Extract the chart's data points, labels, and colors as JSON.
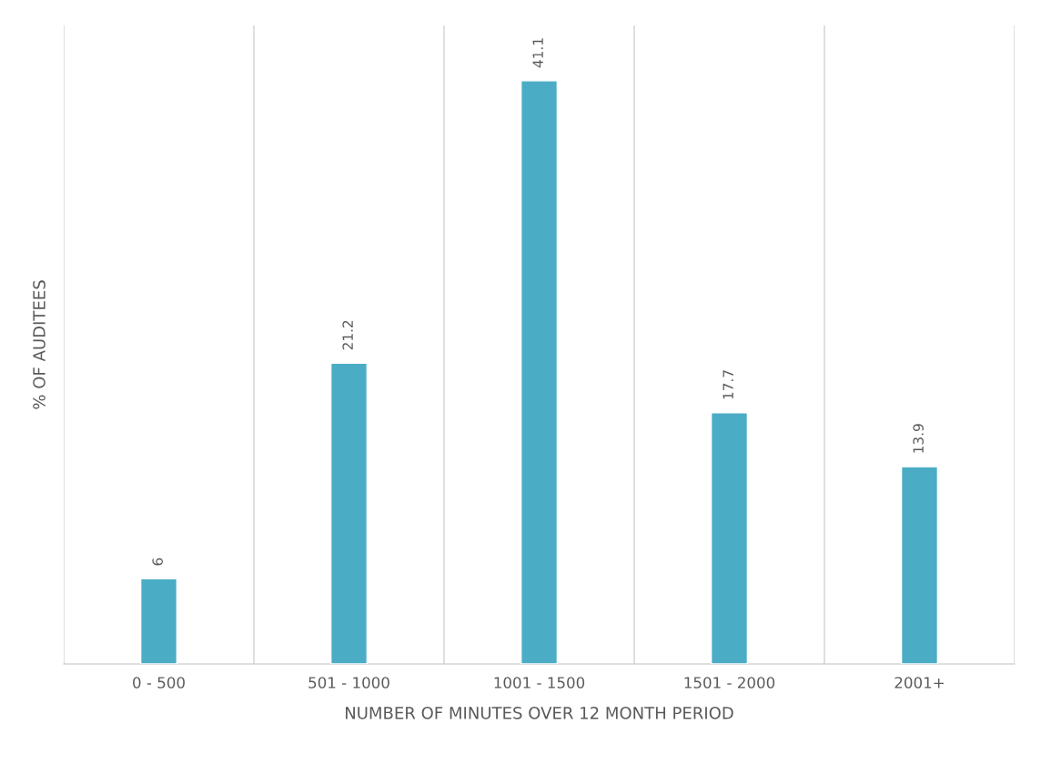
{
  "chart_data": {
    "type": "bar",
    "categories": [
      "0 - 500",
      "501 - 1000",
      "1001 - 1500",
      "1501 - 2000",
      "2001+"
    ],
    "values": [
      6,
      21.2,
      41.1,
      17.7,
      13.9
    ],
    "color": "#4bacc6",
    "xlabel": "NUMBER OF MINUTES OVER 12 MONTH PERIOD",
    "ylabel": "% OF AUDITEES",
    "ylim": [
      0,
      45
    ],
    "tick_labels": "x",
    "grid": "x",
    "data_labels": true
  }
}
